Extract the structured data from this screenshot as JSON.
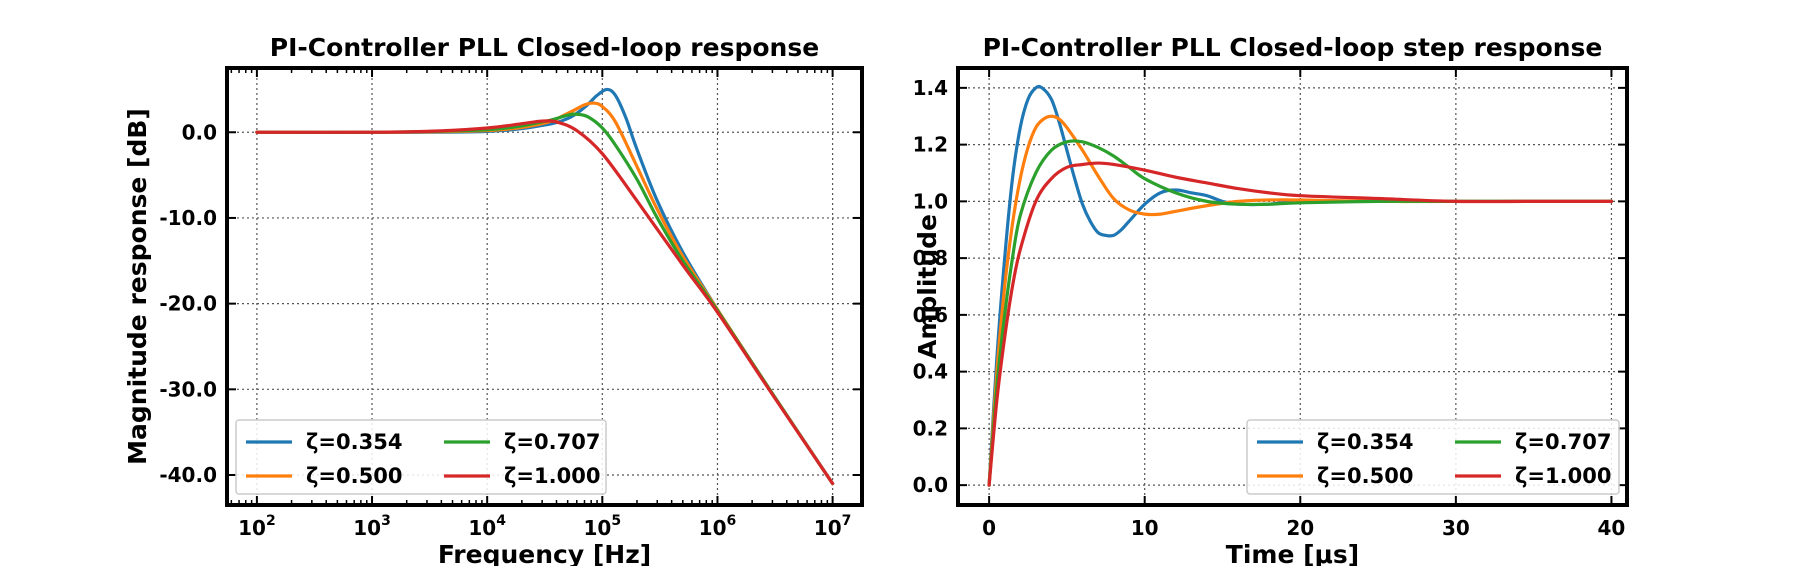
{
  "colors": {
    "z0354": "#1f77b4",
    "z0500": "#ff7f0e",
    "z0707": "#2ca02c",
    "z1000": "#d62728"
  },
  "chart_data": [
    {
      "type": "line",
      "title": "PI-Controller PLL Closed-loop response",
      "xlabel": "Frequency [Hz]",
      "ylabel": "Magnitude response [dB]",
      "xscale": "log",
      "xlim": [
        55,
        18000000
      ],
      "ylim": [
        -43.5,
        7.5
      ],
      "xticks": [
        {
          "v": 100,
          "base": "10",
          "exp": "2"
        },
        {
          "v": 1000,
          "base": "10",
          "exp": "3"
        },
        {
          "v": 10000,
          "base": "10",
          "exp": "4"
        },
        {
          "v": 100000,
          "base": "10",
          "exp": "5"
        },
        {
          "v": 1000000,
          "base": "10",
          "exp": "6"
        },
        {
          "v": 10000000,
          "base": "10",
          "exp": "7"
        }
      ],
      "yticks": [
        {
          "v": 0,
          "label": "0.0"
        },
        {
          "v": -10,
          "label": "-10.0"
        },
        {
          "v": -20,
          "label": "-20.0"
        },
        {
          "v": -30,
          "label": "-30.0"
        },
        {
          "v": -40,
          "label": "-40.0"
        }
      ],
      "grid": true,
      "legend_position": "lower-left",
      "legend_columns": 2,
      "series": [
        {
          "name": "ζ=0.354",
          "color_key": "z0354",
          "x": [
            100,
            1000,
            10000,
            30000,
            50000,
            70000,
            90000,
            110000,
            130000,
            160000,
            200000,
            300000,
            500000,
            1000000,
            3000000,
            10000000
          ],
          "y": [
            0,
            0,
            0.1,
            0.8,
            1.6,
            2.9,
            4.3,
            5.0,
            4.3,
            1.7,
            -2.0,
            -8.0,
            -14.0,
            -20.7,
            -30.5,
            -41.0
          ]
        },
        {
          "name": "ζ=0.500",
          "color_key": "z0500",
          "x": [
            100,
            1000,
            10000,
            30000,
            50000,
            70000,
            85000,
            100000,
            130000,
            200000,
            300000,
            500000,
            1000000,
            3000000,
            10000000
          ],
          "y": [
            0,
            0,
            0.2,
            1.0,
            2.2,
            3.2,
            3.4,
            3.0,
            1.2,
            -4.0,
            -9.0,
            -14.5,
            -20.7,
            -30.5,
            -41.0
          ]
        },
        {
          "name": "ζ=0.707",
          "color_key": "z0707",
          "x": [
            100,
            1000,
            10000,
            30000,
            50000,
            60000,
            75000,
            100000,
            130000,
            200000,
            300000,
            500000,
            1000000,
            3000000,
            10000000
          ],
          "y": [
            0,
            0,
            0.3,
            1.2,
            2.0,
            2.1,
            1.8,
            0.5,
            -1.5,
            -5.5,
            -10.0,
            -15.0,
            -20.8,
            -30.5,
            -41.0
          ]
        },
        {
          "name": "ζ=1.000",
          "color_key": "z1000",
          "x": [
            100,
            1000,
            3000,
            10000,
            20000,
            30000,
            40000,
            60000,
            100000,
            200000,
            500000,
            1000000,
            3000000,
            10000000
          ],
          "y": [
            0,
            0,
            0.1,
            0.5,
            1.0,
            1.3,
            1.2,
            0.2,
            -2.5,
            -8.0,
            -15.5,
            -21.0,
            -30.6,
            -41.0
          ]
        }
      ]
    },
    {
      "type": "line",
      "title": "PI-Controller PLL Closed-loop step response",
      "xlabel": "Time [μs]",
      "ylabel": "Amplitude",
      "xlim": [
        -2,
        41
      ],
      "ylim": [
        -0.07,
        1.47
      ],
      "xticks": [
        {
          "v": 0,
          "label": "0"
        },
        {
          "v": 10,
          "label": "10"
        },
        {
          "v": 20,
          "label": "20"
        },
        {
          "v": 30,
          "label": "30"
        },
        {
          "v": 40,
          "label": "40"
        }
      ],
      "yticks": [
        {
          "v": 0,
          "label": "0.0"
        },
        {
          "v": 0.2,
          "label": "0.2"
        },
        {
          "v": 0.4,
          "label": "0.4"
        },
        {
          "v": 0.6,
          "label": "0.6"
        },
        {
          "v": 0.8,
          "label": "0.8"
        },
        {
          "v": 1.0,
          "label": "1.0"
        },
        {
          "v": 1.2,
          "label": "1.2"
        },
        {
          "v": 1.4,
          "label": "1.4"
        }
      ],
      "grid": true,
      "legend_position": "lower-right",
      "legend_columns": 2,
      "series": [
        {
          "name": "ζ=0.354",
          "color_key": "z0354",
          "x": [
            0,
            0.5,
            1,
            1.5,
            2,
            2.5,
            3,
            3.4,
            4,
            4.5,
            5,
            5.5,
            6,
            6.5,
            7,
            7.5,
            8,
            8.5,
            9,
            10,
            11,
            12,
            13,
            14,
            15,
            16,
            18,
            20,
            25,
            30,
            40
          ],
          "y": [
            0,
            0.45,
            0.8,
            1.08,
            1.26,
            1.36,
            1.4,
            1.4,
            1.36,
            1.28,
            1.18,
            1.08,
            0.99,
            0.93,
            0.89,
            0.88,
            0.88,
            0.9,
            0.93,
            0.99,
            1.03,
            1.04,
            1.03,
            1.02,
            1.0,
            0.99,
            0.99,
            1.0,
            1.0,
            1.0,
            1.0
          ]
        },
        {
          "name": "ζ=0.500",
          "color_key": "z0500",
          "x": [
            0,
            0.5,
            1,
            1.5,
            2,
            2.5,
            3,
            3.5,
            4,
            4.5,
            5,
            6,
            7,
            8,
            9,
            10,
            11,
            12,
            14,
            16,
            18,
            20,
            25,
            30,
            40
          ],
          "y": [
            0,
            0.4,
            0.7,
            0.92,
            1.08,
            1.19,
            1.26,
            1.29,
            1.3,
            1.29,
            1.26,
            1.18,
            1.09,
            1.01,
            0.97,
            0.955,
            0.955,
            0.965,
            0.985,
            1.0,
            1.005,
            1.005,
            1.0,
            1.0,
            1.0
          ]
        },
        {
          "name": "ζ=0.707",
          "color_key": "z0707",
          "x": [
            0,
            0.5,
            1,
            1.5,
            2,
            3,
            4,
            5,
            6,
            7,
            8,
            9,
            10,
            12,
            14,
            16,
            18,
            20,
            25,
            30,
            40
          ],
          "y": [
            0,
            0.35,
            0.6,
            0.8,
            0.95,
            1.1,
            1.18,
            1.21,
            1.21,
            1.19,
            1.16,
            1.12,
            1.08,
            1.03,
            1.0,
            0.99,
            0.99,
            0.995,
            1.0,
            1.0,
            1.0
          ]
        },
        {
          "name": "ζ=1.000",
          "color_key": "z1000",
          "x": [
            0,
            0.5,
            1,
            1.5,
            2,
            3,
            4,
            5,
            6,
            7,
            8,
            10,
            12,
            14,
            16,
            18,
            20,
            25,
            30,
            35,
            40
          ],
          "y": [
            0,
            0.3,
            0.52,
            0.7,
            0.83,
            1.0,
            1.08,
            1.12,
            1.13,
            1.135,
            1.13,
            1.11,
            1.085,
            1.065,
            1.045,
            1.03,
            1.02,
            1.01,
            1.0,
            1.0,
            1.0
          ]
        }
      ]
    }
  ]
}
